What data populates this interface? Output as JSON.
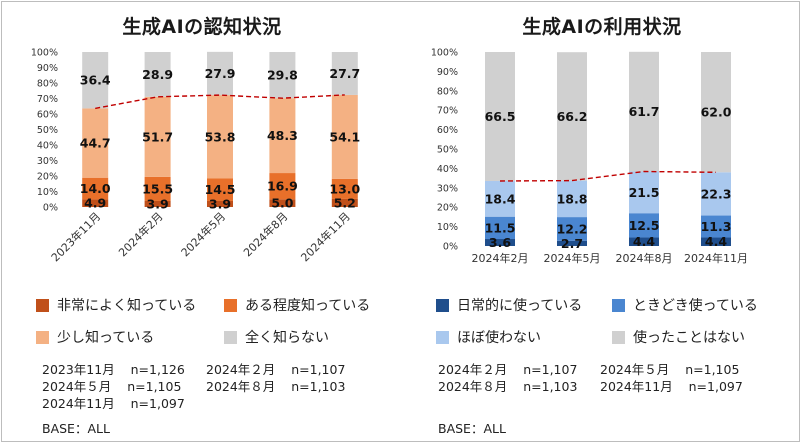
{
  "chart_data": [
    {
      "id": "awareness",
      "type": "bar",
      "stacked": true,
      "title": "生成AIの認知状況",
      "categories": [
        "2023年11月",
        "2024年2月",
        "2024年5月",
        "2024年8月",
        "2024年11月"
      ],
      "series": [
        {
          "name": "非常によく知っている",
          "color": "#c0501a",
          "values": [
            4.9,
            3.9,
            3.9,
            5.0,
            5.2
          ]
        },
        {
          "name": "ある程度知っている",
          "color": "#e8702a",
          "values": [
            14.0,
            15.5,
            14.5,
            16.9,
            13.0
          ]
        },
        {
          "name": "少し知っている",
          "color": "#f4b183",
          "values": [
            44.7,
            51.7,
            53.8,
            48.3,
            54.1
          ]
        },
        {
          "name": "全く知らない",
          "color": "#d0d0d0",
          "values": [
            36.4,
            28.9,
            27.9,
            29.8,
            27.7
          ]
        }
      ],
      "yticks": [
        "0%",
        "10%",
        "20%",
        "30%",
        "40%",
        "50%",
        "60%",
        "70%",
        "80%",
        "90%",
        "100%"
      ],
      "ylim": [
        0,
        100
      ],
      "trend_line": "dashed, top of 少し知っている",
      "trend_color": "#c00000",
      "xlabel_rotated": true
    },
    {
      "id": "usage",
      "type": "bar",
      "stacked": true,
      "title": "生成AIの利用状況",
      "categories": [
        "2024年2月",
        "2024年5月",
        "2024年8月",
        "2024年11月"
      ],
      "series": [
        {
          "name": "日常的に使っている",
          "color": "#1f4e8c",
          "values": [
            3.6,
            2.7,
            4.4,
            4.4
          ]
        },
        {
          "name": "ときどき使っている",
          "color": "#4a86d0",
          "values": [
            11.5,
            12.2,
            12.5,
            11.3
          ]
        },
        {
          "name": "ほぼ使わない",
          "color": "#a9c8ee",
          "values": [
            18.4,
            18.8,
            21.5,
            22.3
          ]
        },
        {
          "name": "使ったことはない",
          "color": "#d0d0d0",
          "values": [
            66.5,
            66.2,
            61.7,
            62.0
          ]
        }
      ],
      "yticks": [
        "0%",
        "10%",
        "20%",
        "30%",
        "40%",
        "50%",
        "60%",
        "70%",
        "80%",
        "90%",
        "100%"
      ],
      "ylim": [
        0,
        100
      ],
      "trend_line": "dashed, top of ほぼ使わない",
      "trend_color": "#c00000",
      "xlabel_rotated": false
    }
  ],
  "left": {
    "title": "生成AIの認知状況",
    "legend": [
      "非常によく知っている",
      "ある程度知っている",
      "少し知っている",
      "全く知らない"
    ],
    "samples": [
      {
        "label": "2023年11月",
        "n": "n=1,126"
      },
      {
        "label": "2024年２月",
        "n": "n=1,107"
      },
      {
        "label": "2024年５月",
        "n": "n=1,105"
      },
      {
        "label": "2024年８月",
        "n": "n=1,103"
      },
      {
        "label": "2024年11月",
        "n": "n=1,097"
      }
    ],
    "base": "BASE：ALL"
  },
  "right": {
    "title": "生成AIの利用状況",
    "legend": [
      "日常的に使っている",
      "ときどき使っている",
      "ほぼ使わない",
      "使ったことはない"
    ],
    "samples": [
      {
        "label": "2024年２月",
        "n": "n=1,107"
      },
      {
        "label": "2024年５月",
        "n": "n=1,105"
      },
      {
        "label": "2024年８月",
        "n": "n=1,103"
      },
      {
        "label": "2024年11月",
        "n": "n=1,097"
      }
    ],
    "base": "BASE：ALL"
  }
}
